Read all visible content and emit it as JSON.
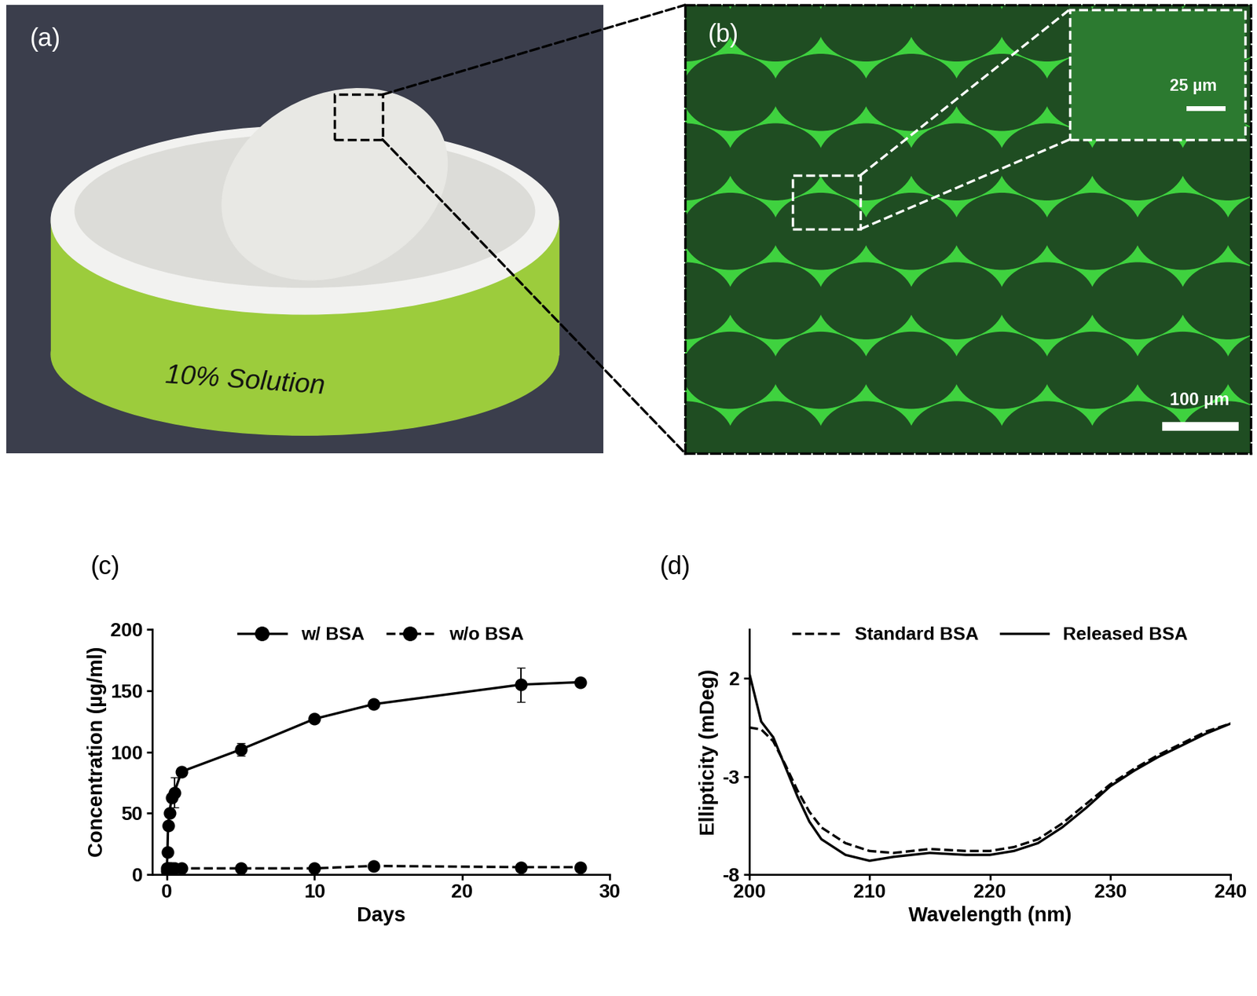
{
  "panels": [
    {
      "label": "(a)",
      "texts": [
        "10% Solution"
      ]
    },
    {
      "label": "(b)",
      "scale_bars": [
        "100 µm",
        "25 µm"
      ]
    }
  ],
  "chart_data": [
    {
      "type": "line",
      "label": "(c)",
      "xlabel": "Days",
      "ylabel": "Concentration (µg/ml)",
      "x": [
        0,
        0.04,
        0.08,
        0.17,
        0.33,
        0.5,
        1,
        5,
        10,
        14,
        24,
        28
      ],
      "series": [
        {
          "name": "w/ BSA",
          "color": "#000000",
          "marker": "o",
          "line_style": "solid",
          "values": [
            5,
            18,
            40,
            50,
            63,
            67,
            84,
            102,
            127,
            139,
            155,
            157
          ],
          "errors": [
            0,
            0,
            0,
            0,
            0,
            12,
            0,
            5,
            0,
            0,
            14,
            0
          ]
        },
        {
          "name": "w/o BSA",
          "color": "#000000",
          "marker": "o",
          "line_style": "dashed",
          "values": [
            3,
            4,
            5,
            5,
            5,
            5,
            5,
            5,
            5,
            7,
            6,
            6
          ],
          "errors": [
            0,
            0,
            0,
            0,
            0,
            0,
            0,
            0,
            0,
            0,
            0,
            0
          ]
        }
      ],
      "xlim": [
        -1,
        30
      ],
      "xticks": [
        0,
        10,
        20,
        30
      ],
      "ylim": [
        0,
        200
      ],
      "yticks": [
        0,
        50,
        100,
        150,
        200
      ],
      "legend": "upper center"
    },
    {
      "type": "line",
      "label": "(d)",
      "xlabel": "Wavelength (nm)",
      "ylabel": "Ellipticity (mDeg)",
      "x": [
        200,
        201,
        202,
        203,
        204,
        205,
        206,
        208,
        210,
        212,
        215,
        218,
        220,
        222,
        224,
        226,
        228,
        230,
        232,
        234,
        236,
        238,
        240
      ],
      "series": [
        {
          "name": "Standard BSA",
          "color": "#000000",
          "line_style": "dashed",
          "values": [
            -0.5,
            -0.6,
            -1.2,
            -2.4,
            -3.7,
            -4.8,
            -5.6,
            -6.4,
            -6.8,
            -6.9,
            -6.7,
            -6.8,
            -6.8,
            -6.6,
            -6.2,
            -5.4,
            -4.4,
            -3.4,
            -2.6,
            -1.9,
            -1.3,
            -0.7,
            -0.3
          ]
        },
        {
          "name": "Released BSA",
          "color": "#000000",
          "line_style": "solid",
          "values": [
            2.3,
            -0.2,
            -1.0,
            -2.5,
            -4.0,
            -5.3,
            -6.2,
            -7.0,
            -7.3,
            -7.1,
            -6.9,
            -7.0,
            -7.0,
            -6.8,
            -6.4,
            -5.6,
            -4.6,
            -3.5,
            -2.7,
            -2.0,
            -1.4,
            -0.8,
            -0.3
          ]
        }
      ],
      "xlim": [
        200,
        240
      ],
      "xticks": [
        200,
        210,
        220,
        230,
        240
      ],
      "ylim": [
        -8,
        4.5
      ],
      "yticks": [
        -8,
        -3,
        2
      ],
      "legend": "upper center"
    }
  ]
}
